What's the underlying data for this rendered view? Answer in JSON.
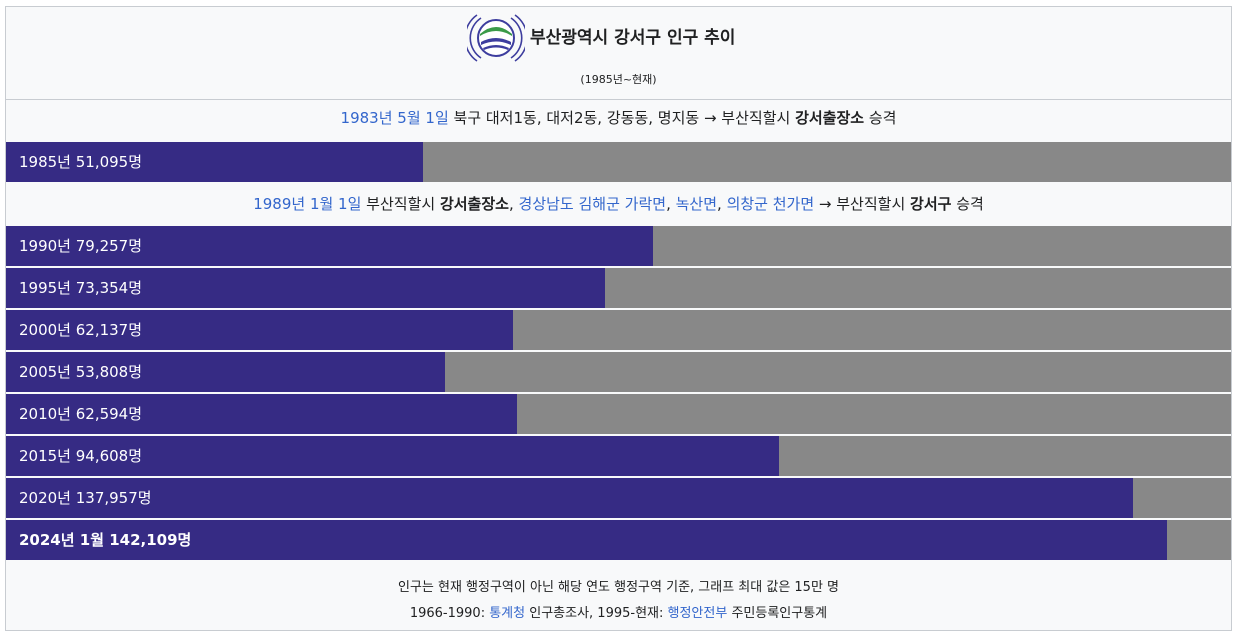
{
  "header": {
    "title": "부산광역시 강서구 인구 추이",
    "subtitle": "(1985년~현재)",
    "colors": {
      "logo_blue": "#3d3d9e",
      "logo_green": "#3a9a48"
    }
  },
  "notes": [
    {
      "segments": [
        {
          "text": "1983년 5월 1일",
          "link": true
        },
        {
          "text": " 북구 대저1동, 대저2동, 강동동, 명지동 → 부산직할시 "
        },
        {
          "text": "강서출장소",
          "bold": true
        },
        {
          "text": " 승격"
        }
      ]
    },
    {
      "segments": [
        {
          "text": "1989년 1월 1일",
          "link": true
        },
        {
          "text": " 부산직할시 "
        },
        {
          "text": "강서출장소",
          "bold": true
        },
        {
          "text": ", "
        },
        {
          "text": "경상남도 김해군 가락면",
          "link": true
        },
        {
          "text": ", "
        },
        {
          "text": "녹산면",
          "link": true
        },
        {
          "text": ", "
        },
        {
          "text": "의창군 천가면",
          "link": true
        },
        {
          "text": " → 부산직할시 "
        },
        {
          "text": "강서구",
          "bold": true
        },
        {
          "text": " 승격"
        }
      ]
    }
  ],
  "chart_data": {
    "type": "bar",
    "orientation": "horizontal",
    "title": "부산광역시 강서구 인구 추이",
    "subtitle": "(1985년~현재)",
    "xlim": [
      0,
      150000
    ],
    "colors": {
      "bar": "#362b84",
      "track": "#888888"
    },
    "bars": [
      {
        "label": "1985년 51,095명",
        "value": 51095
      },
      {
        "label": "1990년 79,257명",
        "value": 79257
      },
      {
        "label": "1995년 73,354명",
        "value": 73354
      },
      {
        "label": "2000년 62,137명",
        "value": 62137
      },
      {
        "label": "2005년 53,808명",
        "value": 53808
      },
      {
        "label": "2010년 62,594명",
        "value": 62594
      },
      {
        "label": "2015년 94,608명",
        "value": 94608
      },
      {
        "label": "2020년 137,957명",
        "value": 137957
      },
      {
        "label": "2024년 1월 142,109명",
        "value": 142109,
        "bold": true
      }
    ]
  },
  "footer": {
    "line1": "인구는 현재 행정구역이 아닌 해당 연도 행정구역 기준, 그래프 최대 값은 15만 명",
    "line2": {
      "prefix": "1966-1990: ",
      "source1": "통계청",
      "middle": " 인구총조사, 1995-현재: ",
      "source2": "행정안전부",
      "suffix": " 주민등록인구통계"
    }
  }
}
